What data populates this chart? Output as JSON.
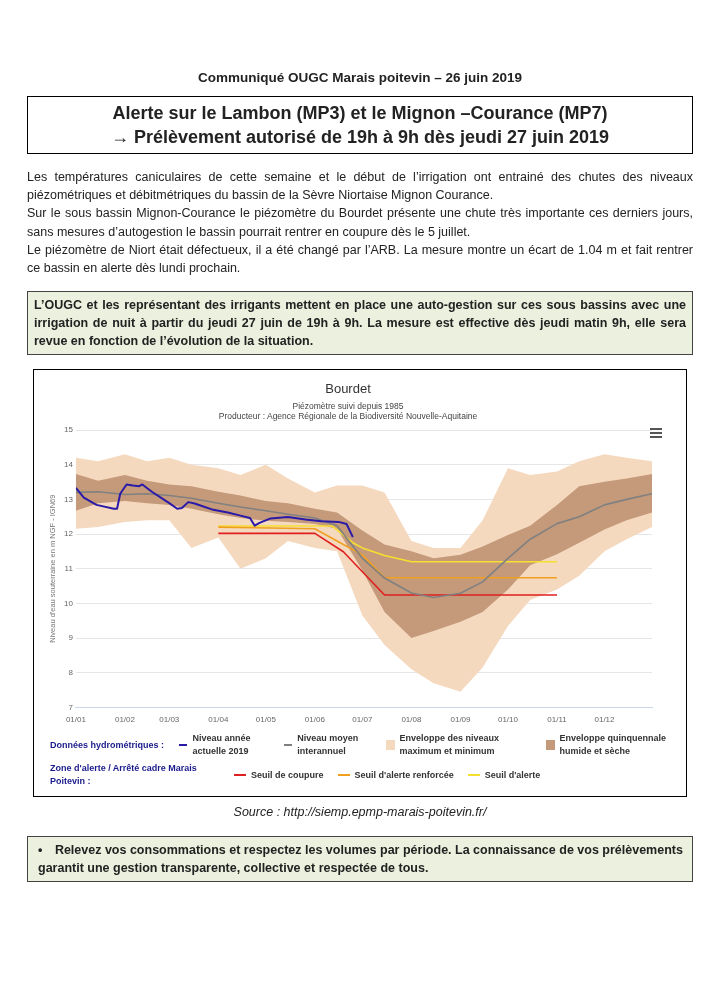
{
  "chart_data": {
    "type": "line",
    "title": "Bourdet",
    "subtitle": "Piézomètre suivi depuis 1985\nProducteur : Agence Régionale de la Biodiversité Nouvelle-Aquitaine",
    "ylabel": "Niveau d'eau souterraine en m NGF - IGN69",
    "annotations": [
      "Communiqué OUGC Marais poitevin – 26 juin 2019",
      "Alerte sur le Lambon (MP3) et le Mignon –Courance (MP7)",
      "→ Prélèvement autorisé de 19h à 9h dès jeudi 27 juin 2019",
      "Les températures caniculaires de cette semaine et le début de l’irrigation ont entrainé des chutes des niveaux piézométriques et débitmétriques du bassin de la Sèvre Niortaise Mignon Courance.",
      "Sur le sous bassin Mignon-Courance le piézomètre du Bourdet présente une chute très importante ces derniers jours, sans mesures d’autogestion le bassin pourrait rentrer en coupure dès le 5 juillet.",
      "Le piézomètre de Niort était défectueux, il a été changé par l’ARB. La mesure montre un écart de 1.04 m et fait rentrer ce bassin en alerte dès lundi prochain.",
      "L’OUGC et les représentant des irrigants mettent en place une auto-gestion sur ces sous bassins avec une irrigation de nuit à partir du jeudi 27 juin de 19h à 9h. La mesure est effective dès jeudi matin 9h, elle sera revue en fonction de l’évolution de la situation.",
      "Données hydrométriques :",
      "Zone d'alerte / Arrêté cadre Marais Poitevin :",
      "Source : http://siemp.epmp-marais-poitevin.fr/",
      "• Relevez vos consommations et respectez les volumes par période. La connaissance de vos prélèvements garantit une gestion transparente, collective et respectée de tous."
    ],
    "x": [
      "--01-01",
      "--01-15",
      "--02-01",
      "--02-15",
      "--03-01",
      "--03-15",
      "--04-01",
      "--04-15",
      "--05-01",
      "--05-15",
      "--06-01",
      "--06-15",
      "--07-01",
      "--07-15",
      "--08-01",
      "--08-15",
      "--09-01",
      "--09-15",
      "--10-01",
      "--10-15",
      "--11-01",
      "--11-15",
      "--12-01",
      "--12-15",
      "--12-31"
    ],
    "series": [
      {
        "name": "Niveau année actuelle 2019",
        "type": "line",
        "color": "#2a1aa8",
        "x": [
          "--01-01",
          "--01-06",
          "--01-14",
          "--01-25",
          "--01-27",
          "--01-29",
          "--02-02",
          "--02-06",
          "--02-10",
          "--02-12",
          "--02-18",
          "--03-01",
          "--03-06",
          "--03-09",
          "--03-13",
          "--03-17",
          "--03-28",
          "--04-07",
          "--04-15",
          "--04-21",
          "--04-24",
          "--04-27",
          "--05-04",
          "--05-15",
          "--05-26",
          "--06-05",
          "--06-16",
          "--06-21",
          "--06-25"
        ],
        "values": [
          13.33,
          13.05,
          12.84,
          12.73,
          12.73,
          13.16,
          13.43,
          13.4,
          13.38,
          13.43,
          13.22,
          12.89,
          12.73,
          12.75,
          12.92,
          12.88,
          12.71,
          12.62,
          12.53,
          12.46,
          12.24,
          12.32,
          12.45,
          12.49,
          12.42,
          12.37,
          12.35,
          12.29,
          11.91
        ]
      },
      {
        "name": "Niveau moyen interannuel",
        "type": "line",
        "color": "#808080",
        "values": [
          13.2,
          13.22,
          13.14,
          13.16,
          13.11,
          13.03,
          12.89,
          12.78,
          12.67,
          12.57,
          12.46,
          12.24,
          11.3,
          10.73,
          10.3,
          10.17,
          10.29,
          10.62,
          11.3,
          11.85,
          12.3,
          12.5,
          12.84,
          13.0,
          13.16
        ]
      },
      {
        "name": "Enveloppe des niveaux maximum et minimum",
        "type": "area",
        "color": "#f5d9bf",
        "values": [
          null,
          null,
          null,
          null,
          null,
          null,
          null,
          null,
          null,
          null,
          null,
          null,
          null,
          null,
          null,
          null,
          null,
          null,
          null,
          null,
          null,
          null,
          null,
          null,
          null
        ],
        "upper": [
          14.2,
          14.1,
          14.3,
          14.1,
          14.2,
          14.0,
          13.9,
          13.7,
          14.0,
          13.6,
          13.2,
          13.4,
          13.4,
          13.2,
          11.8,
          11.6,
          11.6,
          12.4,
          13.9,
          13.7,
          13.8,
          14.1,
          14.3,
          14.2,
          14.1
        ],
        "lower": [
          12.15,
          12.2,
          12.35,
          12.4,
          12.4,
          11.6,
          11.9,
          11.0,
          11.3,
          11.8,
          11.6,
          11.5,
          9.65,
          8.8,
          8.1,
          7.7,
          7.45,
          8.15,
          9.35,
          10.1,
          10.4,
          10.8,
          11.5,
          11.85,
          12.2
        ]
      },
      {
        "name": "Enveloppe quinquennale humide et sèche",
        "type": "area",
        "color": "#c49a7a",
        "values": [
          null,
          null,
          null,
          null,
          null,
          null,
          null,
          null,
          null,
          null,
          null,
          null,
          null,
          null,
          null,
          null,
          null,
          null,
          null,
          null,
          null,
          null,
          null,
          null,
          null
        ],
        "upper": [
          13.73,
          13.54,
          13.7,
          13.54,
          13.43,
          13.38,
          13.22,
          13.11,
          12.95,
          12.89,
          12.73,
          12.62,
          12.1,
          11.7,
          11.5,
          11.3,
          11.4,
          11.64,
          11.97,
          12.24,
          12.84,
          13.38,
          13.51,
          13.6,
          13.73
        ],
        "lower": [
          12.67,
          12.89,
          12.95,
          12.89,
          12.84,
          12.73,
          12.57,
          12.46,
          12.38,
          12.35,
          12.29,
          12.15,
          10.95,
          9.75,
          9.0,
          9.2,
          9.47,
          9.75,
          10.4,
          11.1,
          11.42,
          11.75,
          12.13,
          12.4,
          12.62
        ]
      },
      {
        "name": "Seuil de coupure",
        "type": "line",
        "color": "#e02020",
        "x": [
          "--04-01",
          "--06-01",
          "--06-19",
          "--07-15",
          "--11-01"
        ],
        "values": [
          12.02,
          12.02,
          11.49,
          10.24,
          10.24
        ]
      },
      {
        "name": "Seuil d'alerte renforcée",
        "type": "line",
        "color": "#f0a020",
        "x": [
          "--04-01",
          "--06-01",
          "--06-15",
          "--07-01",
          "--07-15",
          "--11-01"
        ],
        "values": [
          12.2,
          12.15,
          11.8,
          11.4,
          10.74,
          10.74
        ]
      },
      {
        "name": "Seuil d'alerte",
        "type": "line",
        "color": "#f5e030",
        "x": [
          "--04-01",
          "--06-12",
          "--06-25",
          "--07-01",
          "--07-15",
          "--08-01",
          "--11-01"
        ],
        "values": [
          12.23,
          12.23,
          11.75,
          11.6,
          11.38,
          11.2,
          11.2
        ]
      }
    ],
    "xlim": [
      "--01-01",
      "--12-31"
    ],
    "xticks": [
      {
        "value": "--01-01",
        "label": "01/01"
      },
      {
        "value": "--02-01",
        "label": "01/02"
      },
      {
        "value": "--03-01",
        "label": "01/03"
      },
      {
        "value": "--04-01",
        "label": "01/04"
      },
      {
        "value": "--05-01",
        "label": "01/05"
      },
      {
        "value": "--06-01",
        "label": "01/06"
      },
      {
        "value": "--07-01",
        "label": "01/07"
      },
      {
        "value": "--08-01",
        "label": "01/08"
      },
      {
        "value": "--09-01",
        "label": "01/09"
      },
      {
        "value": "--10-01",
        "label": "01/10"
      },
      {
        "value": "--11-01",
        "label": "01/11"
      },
      {
        "value": "--12-01",
        "label": "01/12"
      }
    ],
    "ylim": [
      7,
      15
    ],
    "yticks": [
      7,
      8,
      9,
      10,
      11,
      12,
      13,
      14,
      15
    ],
    "grid": "y",
    "legend": "bottom",
    "marker": "none",
    "line_style": "solid"
  }
}
